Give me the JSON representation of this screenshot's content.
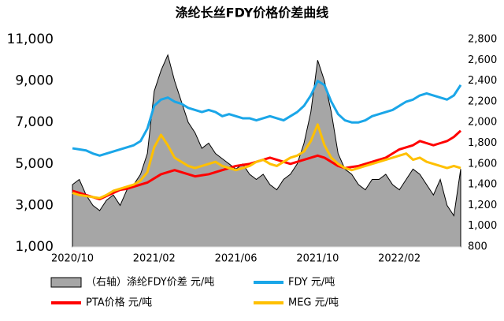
{
  "chart_data": {
    "type": "line",
    "title": "涤纶长丝FDY价格价差曲线",
    "categories": [
      "2020/10",
      null,
      null,
      null,
      null,
      null,
      null,
      null,
      null,
      null,
      null,
      null,
      "2021/02",
      null,
      null,
      null,
      null,
      null,
      null,
      null,
      null,
      null,
      null,
      null,
      "2021/06",
      null,
      null,
      null,
      null,
      null,
      null,
      null,
      null,
      null,
      null,
      null,
      "2021/10",
      null,
      null,
      null,
      null,
      null,
      null,
      null,
      null,
      null,
      null,
      null,
      "2022/02",
      null,
      null,
      null,
      null,
      null,
      null,
      null,
      null,
      null
    ],
    "ylim": [
      1000,
      11000
    ],
    "yticks": [
      {
        "value": 1000,
        "label": "1,000"
      },
      {
        "value": 3000,
        "label": "3,000"
      },
      {
        "value": 5000,
        "label": "5,000"
      },
      {
        "value": 7000,
        "label": "7,000"
      },
      {
        "value": 9000,
        "label": "9,000"
      },
      {
        "value": 11000,
        "label": "11,000"
      }
    ],
    "y2lim": [
      800,
      2800
    ],
    "y2ticks": [
      800,
      {
        "value": 1000,
        "label": "1,000"
      },
      {
        "value": 1200,
        "label": "1,200"
      },
      {
        "value": 1400,
        "label": "1,400"
      },
      {
        "value": 1600,
        "label": "1,600"
      },
      {
        "value": 1800,
        "label": "1,800"
      },
      {
        "value": 2000,
        "label": "2,000"
      },
      {
        "value": 2200,
        "label": "2,200"
      },
      {
        "value": 2400,
        "label": "2,400"
      },
      {
        "value": 2600,
        "label": "2,600"
      },
      {
        "value": 2800,
        "label": "2,800"
      }
    ],
    "grid": false,
    "legend": "bottom",
    "series": [
      {
        "name": "（右轴）涤纶FDY价差 元/吨",
        "color": "#a6a6a6",
        "axis": "y2",
        "style": "area",
        "values": [
          1400,
          1450,
          1300,
          1200,
          1150,
          1250,
          1300,
          1200,
          1350,
          1400,
          1500,
          1700,
          2300,
          2500,
          2650,
          2400,
          2200,
          2000,
          1900,
          1750,
          1800,
          1700,
          1650,
          1600,
          1550,
          1600,
          1500,
          1450,
          1500,
          1400,
          1350,
          1450,
          1500,
          1600,
          1800,
          2100,
          2600,
          2400,
          2100,
          1700,
          1550,
          1500,
          1400,
          1350,
          1450,
          1450,
          1500,
          1400,
          1350,
          1450,
          1550,
          1500,
          1400,
          1300,
          1450,
          1200,
          1100,
          1550
        ]
      },
      {
        "name": "FDY 元/吨",
        "color": "#1aa6e8",
        "values": [
          5750,
          5700,
          5650,
          5500,
          5400,
          5500,
          5600,
          5700,
          5800,
          5900,
          6100,
          6700,
          7800,
          8100,
          8200,
          8000,
          7900,
          7700,
          7600,
          7500,
          7600,
          7500,
          7300,
          7400,
          7300,
          7200,
          7200,
          7100,
          7200,
          7300,
          7200,
          7100,
          7300,
          7500,
          7800,
          8300,
          9000,
          8800,
          8000,
          7400,
          7100,
          7000,
          7000,
          7100,
          7300,
          7400,
          7500,
          7600,
          7800,
          8000,
          8100,
          8300,
          8400,
          8300,
          8200,
          8100,
          8300,
          8800
        ]
      },
      {
        "name": "PTA价格 元/吨",
        "color": "#ff0000",
        "values": [
          3700,
          3600,
          3500,
          3400,
          3300,
          3450,
          3600,
          3750,
          3800,
          3900,
          4000,
          4100,
          4300,
          4500,
          4600,
          4700,
          4600,
          4500,
          4400,
          4450,
          4500,
          4600,
          4700,
          4800,
          4900,
          4950,
          5000,
          5100,
          5200,
          5300,
          5200,
          5100,
          5000,
          5100,
          5200,
          5300,
          5400,
          5300,
          5100,
          4900,
          4800,
          4850,
          4900,
          5000,
          5100,
          5200,
          5300,
          5500,
          5700,
          5800,
          5900,
          6100,
          6000,
          5900,
          6000,
          6100,
          6300,
          6600
        ]
      },
      {
        "name": "MEG 元/吨",
        "color": "#ffc000",
        "values": [
          3600,
          3500,
          3450,
          3400,
          3350,
          3500,
          3700,
          3800,
          3900,
          4000,
          4200,
          4600,
          5800,
          6400,
          5900,
          5300,
          5100,
          4900,
          4800,
          4900,
          5000,
          5100,
          4900,
          4800,
          4700,
          4800,
          4900,
          5100,
          5200,
          5000,
          4900,
          5100,
          5300,
          5400,
          5600,
          6100,
          6900,
          5900,
          5300,
          5000,
          4800,
          4700,
          4800,
          4900,
          5000,
          5100,
          5200,
          5300,
          5400,
          5500,
          5200,
          5300,
          5100,
          5000,
          4900,
          4800,
          4900,
          4800
        ]
      }
    ]
  }
}
